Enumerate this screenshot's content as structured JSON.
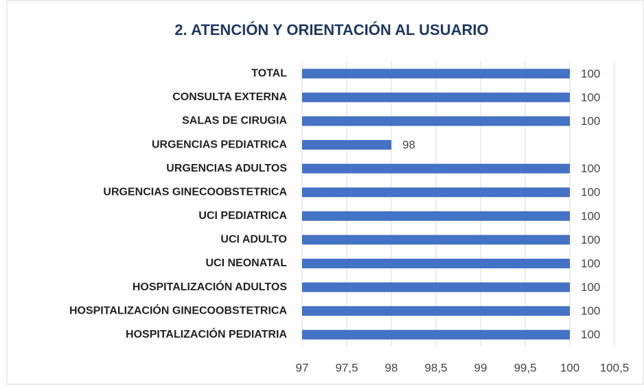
{
  "chart_data": {
    "type": "bar",
    "orientation": "horizontal",
    "title": "2. ATENCIÓN Y ORIENTACIÓN AL USUARIO",
    "categories": [
      "TOTAL",
      "CONSULTA EXTERNA",
      "SALAS DE CIRUGIA",
      "URGENCIAS PEDIATRICA",
      "URGENCIAS ADULTOS",
      "URGENCIAS GINECOOBSTETRICA",
      "UCI PEDIATRICA",
      "UCI ADULTO",
      "UCI NEONATAL",
      "HOSPITALIZACIÓN ADULTOS",
      "HOSPITALIZACIÓN GINECOOBSTETRICA",
      "HOSPITALIZACIÓN PEDIATRIA"
    ],
    "values": [
      100,
      100,
      100,
      98,
      100,
      100,
      100,
      100,
      100,
      100,
      100,
      100
    ],
    "color": "#4472c4",
    "xlim": [
      97,
      100.5
    ],
    "xticks": [
      97,
      {
        "value": 97.5,
        "label": "97,5"
      },
      98,
      {
        "value": 98.5,
        "label": "98,5"
      },
      99,
      {
        "value": 99.5,
        "label": "99,5"
      },
      100,
      {
        "value": 100.5,
        "label": "100,5"
      }
    ],
    "grid": true
  }
}
